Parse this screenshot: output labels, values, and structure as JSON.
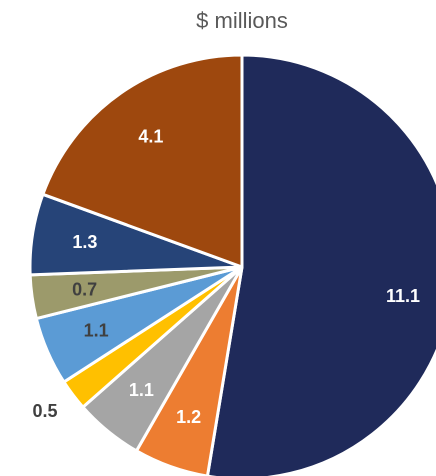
{
  "chart_data": {
    "type": "pie",
    "title": "$ millions",
    "values": [
      11.1,
      1.2,
      1.1,
      0.5,
      1.1,
      0.7,
      1.3,
      4.1
    ],
    "data_labels": [
      "11.1",
      "1.2",
      "1.1",
      "0.5",
      "1.1",
      "0.7",
      "1.3",
      "4.1"
    ],
    "colors": [
      "#1f2a5a",
      "#ed7d31",
      "#a5a5a5",
      "#ffc000",
      "#5b9bd5",
      "#9c9a6b",
      "#264478",
      "#9e480e"
    ],
    "label_colors": [
      "#ffffff",
      "#ffffff",
      "#ffffff",
      "#404040",
      "#404040",
      "#404040",
      "#ffffff",
      "#ffffff"
    ],
    "label_outside": [
      false,
      false,
      false,
      true,
      false,
      false,
      false,
      false
    ],
    "start_angle_deg": 0,
    "direction": "clockwise",
    "legend": "none"
  }
}
